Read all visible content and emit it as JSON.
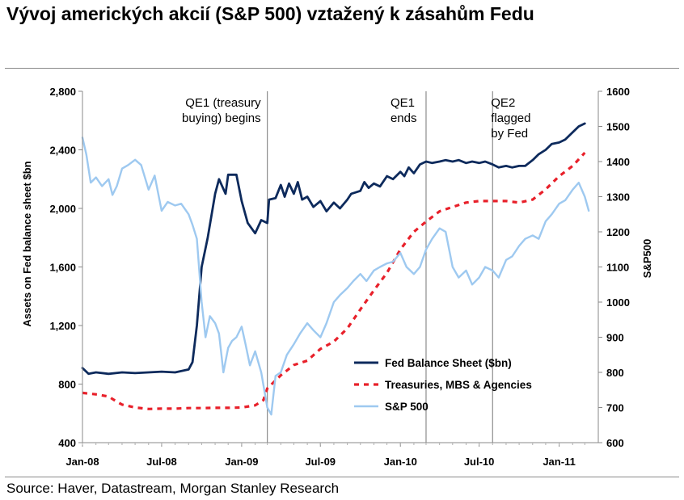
{
  "title": "Vývoj amerických akcií (S&P 500) vztažený k zásahům Fedu",
  "source": "Source: Haver, Datastream, Morgan Stanley Research",
  "colors": {
    "fed": "#0d2a5c",
    "treasuries": "#e8202a",
    "sp500": "#9ec9f0",
    "events": "#8c8c8c"
  },
  "chart_data": {
    "type": "line",
    "ylabel": "Assets on Fed balance sheet $bn",
    "y2label": "S&P500",
    "ylim": [
      400,
      2800
    ],
    "y2lim": [
      600,
      1600
    ],
    "yticks": [
      "400",
      "800",
      "1,200",
      "1,600",
      "2,000",
      "2,400",
      "2,800"
    ],
    "y2ticks": [
      "600",
      "700",
      "800",
      "900",
      "1000",
      "1100",
      "1200",
      "1300",
      "1400",
      "1500",
      "1600"
    ],
    "xticks": [
      "Jan-08",
      "Jul-08",
      "Jan-09",
      "Jul-09",
      "Jan-10",
      "Jul-10",
      "Jan-11"
    ],
    "legend_position": "bottom-right",
    "events": [
      {
        "x": "2009-03",
        "lines": [
          "QE1 (treasury",
          "buying) begins"
        ]
      },
      {
        "x": "2010-03",
        "lines": [
          "QE1",
          "ends"
        ]
      },
      {
        "x": "2010-08",
        "lines": [
          "QE2",
          "flagged",
          "by Fed"
        ]
      }
    ],
    "series": [
      {
        "name": "Fed Balance Sheet ($bn)",
        "axis": "left",
        "style": "solid",
        "points": [
          [
            "2008-01",
            910
          ],
          [
            "2008-01-15",
            870
          ],
          [
            "2008-02",
            880
          ],
          [
            "2008-03",
            870
          ],
          [
            "2008-04",
            880
          ],
          [
            "2008-05",
            875
          ],
          [
            "2008-06",
            880
          ],
          [
            "2008-07",
            885
          ],
          [
            "2008-08",
            880
          ],
          [
            "2008-09",
            900
          ],
          [
            "2008-09-10",
            950
          ],
          [
            "2008-09-20",
            1200
          ],
          [
            "2008-10",
            1600
          ],
          [
            "2008-10-15",
            1800
          ],
          [
            "2008-11",
            2100
          ],
          [
            "2008-11-10",
            2200
          ],
          [
            "2008-11-25",
            2100
          ],
          [
            "2008-12",
            2230
          ],
          [
            "2008-12-20",
            2230
          ],
          [
            "2009-01",
            2050
          ],
          [
            "2009-01-15",
            1900
          ],
          [
            "2009-02",
            1830
          ],
          [
            "2009-02-15",
            1920
          ],
          [
            "2009-03",
            1900
          ],
          [
            "2009-03-05",
            2060
          ],
          [
            "2009-03-20",
            2070
          ],
          [
            "2009-04",
            2160
          ],
          [
            "2009-04-10",
            2080
          ],
          [
            "2009-04-20",
            2170
          ],
          [
            "2009-05",
            2100
          ],
          [
            "2009-05-10",
            2180
          ],
          [
            "2009-05-20",
            2060
          ],
          [
            "2009-06",
            2080
          ],
          [
            "2009-06-15",
            2010
          ],
          [
            "2009-07",
            2050
          ],
          [
            "2009-07-15",
            1980
          ],
          [
            "2009-08",
            2040
          ],
          [
            "2009-08-15",
            2000
          ],
          [
            "2009-09",
            2060
          ],
          [
            "2009-09-10",
            2100
          ],
          [
            "2009-10",
            2120
          ],
          [
            "2009-10-10",
            2180
          ],
          [
            "2009-10-20",
            2140
          ],
          [
            "2009-11",
            2170
          ],
          [
            "2009-11-15",
            2150
          ],
          [
            "2009-12",
            2220
          ],
          [
            "2009-12-15",
            2200
          ],
          [
            "2010-01",
            2250
          ],
          [
            "2010-01-10",
            2220
          ],
          [
            "2010-01-20",
            2280
          ],
          [
            "2010-02",
            2240
          ],
          [
            "2010-02-15",
            2300
          ],
          [
            "2010-03",
            2320
          ],
          [
            "2010-03-15",
            2310
          ],
          [
            "2010-04",
            2320
          ],
          [
            "2010-04-15",
            2330
          ],
          [
            "2010-05",
            2320
          ],
          [
            "2010-05-15",
            2330
          ],
          [
            "2010-06",
            2310
          ],
          [
            "2010-06-15",
            2320
          ],
          [
            "2010-07",
            2310
          ],
          [
            "2010-07-15",
            2320
          ],
          [
            "2010-08",
            2300
          ],
          [
            "2010-08-15",
            2280
          ],
          [
            "2010-09",
            2290
          ],
          [
            "2010-09-15",
            2280
          ],
          [
            "2010-10",
            2290
          ],
          [
            "2010-10-15",
            2290
          ],
          [
            "2010-11",
            2330
          ],
          [
            "2010-11-15",
            2370
          ],
          [
            "2010-12",
            2400
          ],
          [
            "2010-12-15",
            2440
          ],
          [
            "2011-01",
            2450
          ],
          [
            "2011-01-15",
            2470
          ],
          [
            "2011-02",
            2520
          ],
          [
            "2011-02-15",
            2560
          ],
          [
            "2011-03",
            2580
          ]
        ]
      },
      {
        "name": "Treasuries, MBS & Agencies",
        "axis": "left",
        "style": "dashed",
        "points": [
          [
            "2008-01",
            740
          ],
          [
            "2008-02",
            730
          ],
          [
            "2008-03",
            715
          ],
          [
            "2008-03-20",
            680
          ],
          [
            "2008-04",
            660
          ],
          [
            "2008-05",
            640
          ],
          [
            "2008-06",
            630
          ],
          [
            "2008-07",
            632
          ],
          [
            "2008-08",
            632
          ],
          [
            "2008-09",
            636
          ],
          [
            "2008-10",
            636
          ],
          [
            "2008-11",
            638
          ],
          [
            "2008-12",
            638
          ],
          [
            "2009-01",
            640
          ],
          [
            "2009-02",
            655
          ],
          [
            "2009-02-20",
            690
          ],
          [
            "2009-03",
            770
          ],
          [
            "2009-04",
            860
          ],
          [
            "2009-05",
            930
          ],
          [
            "2009-06",
            960
          ],
          [
            "2009-07",
            1040
          ],
          [
            "2009-08",
            1090
          ],
          [
            "2009-09",
            1180
          ],
          [
            "2009-10",
            1310
          ],
          [
            "2009-11",
            1440
          ],
          [
            "2009-12",
            1560
          ],
          [
            "2010-01",
            1720
          ],
          [
            "2010-02",
            1840
          ],
          [
            "2010-03",
            1910
          ],
          [
            "2010-04",
            1980
          ],
          [
            "2010-05",
            2010
          ],
          [
            "2010-06",
            2040
          ],
          [
            "2010-07",
            2050
          ],
          [
            "2010-08",
            2050
          ],
          [
            "2010-09",
            2050
          ],
          [
            "2010-10",
            2040
          ],
          [
            "2010-11",
            2060
          ],
          [
            "2010-12",
            2130
          ],
          [
            "2011-01",
            2220
          ],
          [
            "2011-02",
            2290
          ],
          [
            "2011-03",
            2380
          ]
        ]
      },
      {
        "name": "S&P 500",
        "axis": "right",
        "style": "solid",
        "points": [
          [
            "2008-01",
            1468
          ],
          [
            "2008-01-10",
            1420
          ],
          [
            "2008-01-20",
            1340
          ],
          [
            "2008-02",
            1355
          ],
          [
            "2008-02-15",
            1330
          ],
          [
            "2008-03",
            1350
          ],
          [
            "2008-03-10",
            1305
          ],
          [
            "2008-03-20",
            1330
          ],
          [
            "2008-04",
            1380
          ],
          [
            "2008-04-15",
            1390
          ],
          [
            "2008-05",
            1405
          ],
          [
            "2008-05-15",
            1390
          ],
          [
            "2008-06",
            1320
          ],
          [
            "2008-06-15",
            1360
          ],
          [
            "2008-07",
            1260
          ],
          [
            "2008-07-15",
            1285
          ],
          [
            "2008-08",
            1275
          ],
          [
            "2008-08-15",
            1280
          ],
          [
            "2008-09",
            1250
          ],
          [
            "2008-09-10",
            1220
          ],
          [
            "2008-09-20",
            1180
          ],
          [
            "2008-10",
            1000
          ],
          [
            "2008-10-10",
            900
          ],
          [
            "2008-10-20",
            960
          ],
          [
            "2008-11",
            940
          ],
          [
            "2008-11-10",
            910
          ],
          [
            "2008-11-20",
            800
          ],
          [
            "2008-12",
            870
          ],
          [
            "2008-12-10",
            890
          ],
          [
            "2008-12-20",
            900
          ],
          [
            "2009-01",
            930
          ],
          [
            "2009-01-10",
            880
          ],
          [
            "2009-01-20",
            820
          ],
          [
            "2009-02",
            860
          ],
          [
            "2009-02-15",
            800
          ],
          [
            "2009-03",
            700
          ],
          [
            "2009-03-10",
            680
          ],
          [
            "2009-03-20",
            790
          ],
          [
            "2009-04",
            800
          ],
          [
            "2009-04-15",
            850
          ],
          [
            "2009-05",
            880
          ],
          [
            "2009-05-15",
            910
          ],
          [
            "2009-06",
            940
          ],
          [
            "2009-06-15",
            920
          ],
          [
            "2009-07",
            900
          ],
          [
            "2009-07-15",
            940
          ],
          [
            "2009-08",
            1000
          ],
          [
            "2009-08-15",
            1020
          ],
          [
            "2009-09",
            1040
          ],
          [
            "2009-09-15",
            1060
          ],
          [
            "2009-10",
            1080
          ],
          [
            "2009-10-15",
            1060
          ],
          [
            "2009-11",
            1090
          ],
          [
            "2009-11-15",
            1100
          ],
          [
            "2009-12",
            1110
          ],
          [
            "2009-12-15",
            1115
          ],
          [
            "2010-01",
            1140
          ],
          [
            "2010-01-15",
            1100
          ],
          [
            "2010-02",
            1080
          ],
          [
            "2010-02-15",
            1100
          ],
          [
            "2010-03",
            1150
          ],
          [
            "2010-03-15",
            1180
          ],
          [
            "2010-04",
            1210
          ],
          [
            "2010-04-15",
            1200
          ],
          [
            "2010-05",
            1100
          ],
          [
            "2010-05-15",
            1070
          ],
          [
            "2010-06",
            1090
          ],
          [
            "2010-06-15",
            1050
          ],
          [
            "2010-07",
            1070
          ],
          [
            "2010-07-15",
            1100
          ],
          [
            "2010-08",
            1090
          ],
          [
            "2010-08-15",
            1070
          ],
          [
            "2010-09",
            1120
          ],
          [
            "2010-09-15",
            1130
          ],
          [
            "2010-10",
            1160
          ],
          [
            "2010-10-15",
            1180
          ],
          [
            "2010-11",
            1190
          ],
          [
            "2010-11-15",
            1180
          ],
          [
            "2010-12",
            1230
          ],
          [
            "2010-12-15",
            1250
          ],
          [
            "2011-01",
            1280
          ],
          [
            "2011-01-15",
            1290
          ],
          [
            "2011-02",
            1320
          ],
          [
            "2011-02-15",
            1340
          ],
          [
            "2011-03",
            1300
          ],
          [
            "2011-03-10",
            1260
          ]
        ]
      }
    ]
  }
}
